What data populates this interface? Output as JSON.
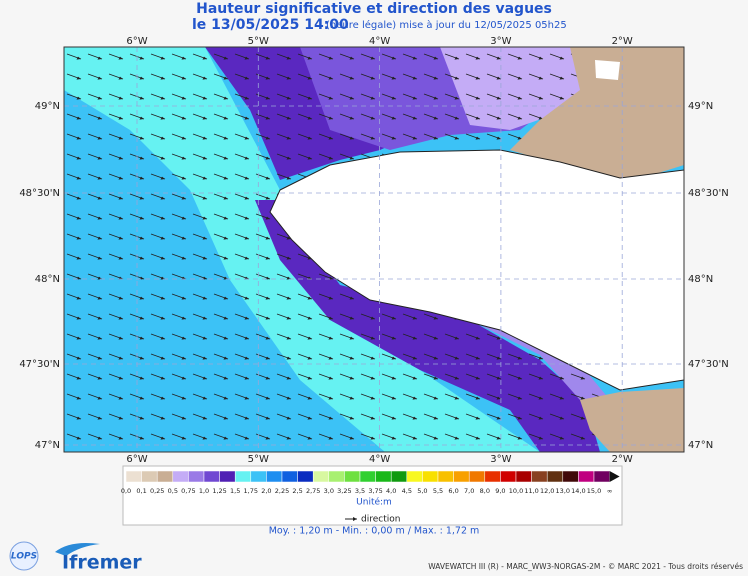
{
  "header": {
    "title": "Hauteur significative et direction des vagues",
    "date": "le 13/05/2025 14:00",
    "note": "(heure légale) mise à jour du 12/05/2025 05h25"
  },
  "map": {
    "lon_labels": [
      "6°W",
      "5°W",
      "4°W",
      "3°W",
      "2°W"
    ],
    "lat_labels": [
      "49°N",
      "48°30'N",
      "48°N",
      "47°30'N",
      "47°N"
    ]
  },
  "legend": {
    "labels": [
      "0,0",
      "0,1",
      "0,25",
      "0,5",
      "0,75",
      "1,0",
      "1,25",
      "1,5",
      "1,75",
      "2,0",
      "2,25",
      "2,5",
      "2,75",
      "3,0",
      "3,25",
      "3,5",
      "3,75",
      "4,0",
      "4,5",
      "5,0",
      "5,5",
      "6,0",
      "7,0",
      "8,0",
      "9,0",
      "10,0",
      "11,0",
      "12,0",
      "13,0",
      "14,0",
      "15,0",
      "∞"
    ],
    "colors": [
      "#ece0d2",
      "#dccab4",
      "#c9ae94",
      "#c4acf6",
      "#9a7ae6",
      "#7048d2",
      "#5020b4",
      "#66f2f2",
      "#3cc2f6",
      "#1e8ef0",
      "#1060e0",
      "#0a2cc0",
      "#d8f8a0",
      "#a8f070",
      "#6ee040",
      "#30d030",
      "#18b818",
      "#109a10",
      "#f8f820",
      "#f8e000",
      "#f8c000",
      "#f8a000",
      "#f07800",
      "#e83000",
      "#d00000",
      "#a80000",
      "#884020",
      "#603010",
      "#400808",
      "#c00080",
      "#700060"
    ],
    "unit": "Unité:m",
    "direction": "direction"
  },
  "stats": "Moy. : 1,20 m   -   Min. : 0,00 m / Max. : 1,72 m",
  "footer": {
    "logo_lops": "LOPS",
    "logo_ifremer": "Ifremer",
    "credit": "WAVEWATCH III (R) - MARC_WW3-NORGAS-2M - © MARC 2021 - Tous droits réservés"
  }
}
